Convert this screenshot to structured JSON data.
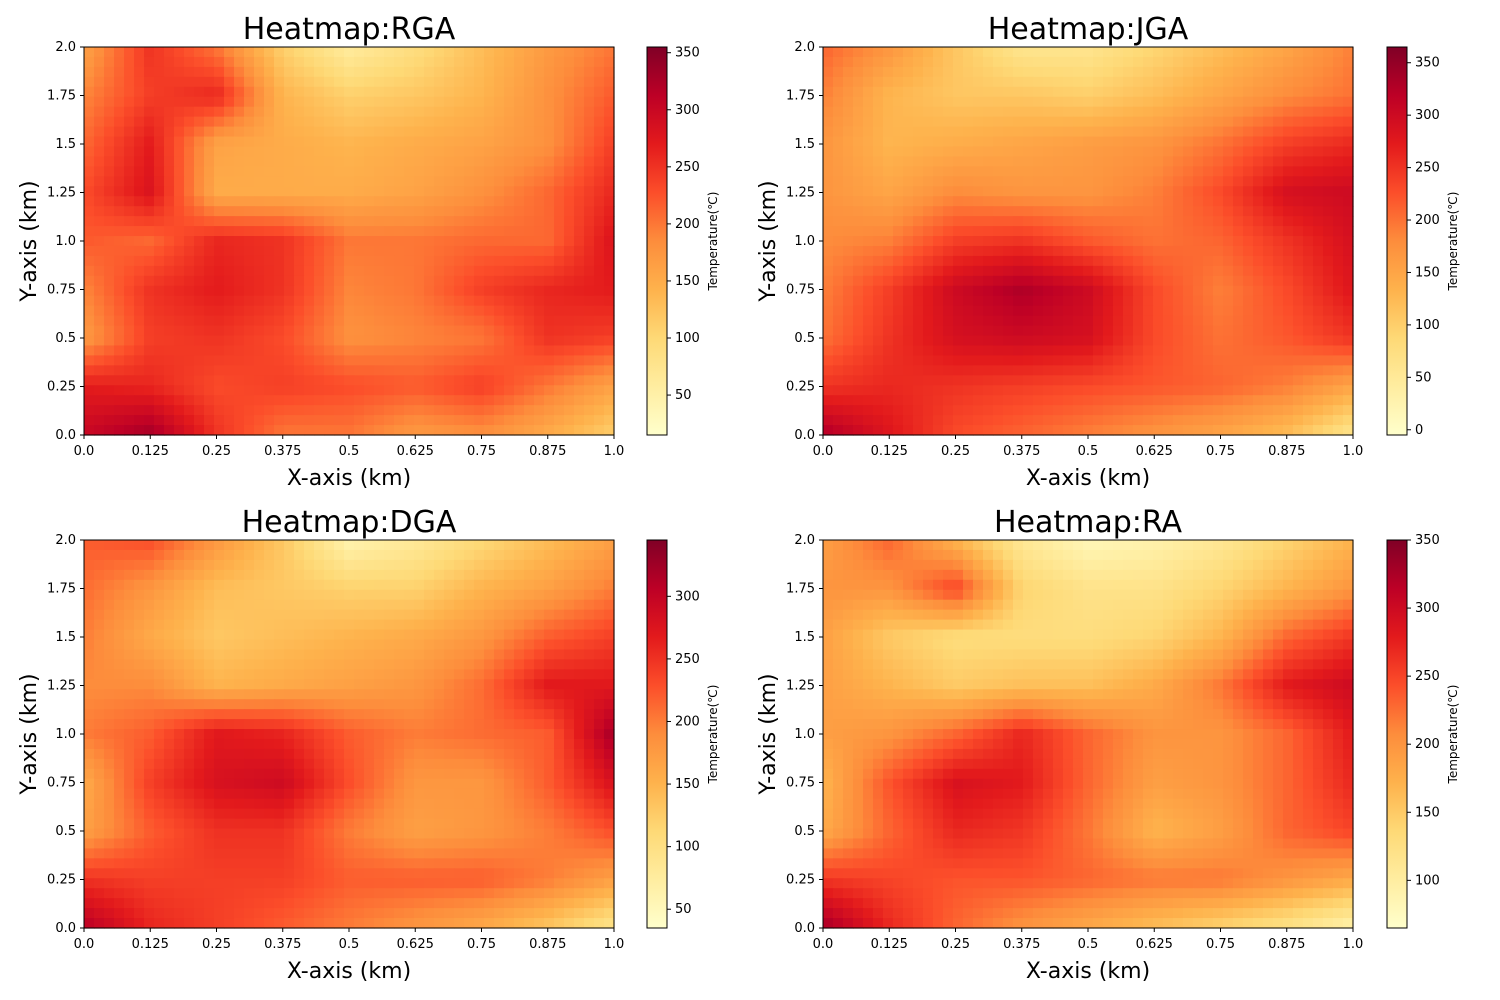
{
  "chart_data": [
    {
      "type": "heatmap",
      "title": "Heatmap:RGA",
      "xlabel": "X-axis (km)",
      "ylabel": "Y-axis (km)",
      "xlim": [
        0,
        1
      ],
      "ylim": [
        0,
        2
      ],
      "xticks": [
        "0.0",
        "0.125",
        "0.25",
        "0.375",
        "0.5",
        "0.625",
        "0.75",
        "0.875",
        "1.0"
      ],
      "yticks": [
        "0.0",
        "0.25",
        "0.5",
        "0.75",
        "1.0",
        "1.25",
        "1.5",
        "1.75",
        "2.0"
      ],
      "colorbar": {
        "label": "Temperature(℃)",
        "range": [
          15,
          355
        ],
        "ticks": [
          50,
          100,
          150,
          200,
          250,
          300,
          350
        ]
      },
      "colormap": [
        "#ffffcc",
        "#ffeda0",
        "#fed976",
        "#feb24c",
        "#fd8d3c",
        "#fc4e2a",
        "#e31a1c",
        "#bd0026",
        "#800026"
      ],
      "x": [
        0.0,
        0.125,
        0.25,
        0.375,
        0.5,
        0.625,
        0.75,
        0.875,
        1.0
      ],
      "y": [
        0.0,
        0.25,
        0.5,
        0.75,
        1.0,
        1.25,
        1.5,
        1.75,
        2.0
      ],
      "z": [
        [
          300,
          330,
          250,
          200,
          200,
          170,
          180,
          150,
          110
        ],
        [
          270,
          260,
          230,
          240,
          230,
          220,
          240,
          200,
          160
        ],
        [
          170,
          240,
          250,
          230,
          180,
          190,
          200,
          250,
          240
        ],
        [
          190,
          250,
          270,
          250,
          190,
          200,
          240,
          260,
          270
        ],
        [
          220,
          210,
          260,
          250,
          200,
          200,
          210,
          210,
          280
        ],
        [
          230,
          280,
          150,
          150,
          150,
          160,
          180,
          210,
          260
        ],
        [
          210,
          270,
          160,
          150,
          140,
          150,
          160,
          180,
          240
        ],
        [
          190,
          240,
          260,
          140,
          110,
          120,
          140,
          180,
          220
        ],
        [
          160,
          250,
          200,
          110,
          60,
          90,
          130,
          170,
          200
        ]
      ]
    },
    {
      "type": "heatmap",
      "title": "Heatmap:JGA",
      "xlabel": "X-axis (km)",
      "ylabel": "Y-axis (km)",
      "xlim": [
        0,
        1
      ],
      "ylim": [
        0,
        2
      ],
      "xticks": [
        "0.0",
        "0.125",
        "0.25",
        "0.375",
        "0.5",
        "0.625",
        "0.75",
        "0.875",
        "1.0"
      ],
      "yticks": [
        "0.0",
        "0.25",
        "0.5",
        "0.75",
        "1.0",
        "1.25",
        "1.5",
        "1.75",
        "2.0"
      ],
      "colorbar": {
        "label": "Temperature(℃)",
        "range": [
          -5,
          365
        ],
        "ticks": [
          0,
          50,
          100,
          150,
          200,
          250,
          300,
          350
        ]
      },
      "colormap": [
        "#ffffcc",
        "#ffeda0",
        "#fed976",
        "#feb24c",
        "#fd8d3c",
        "#fc4e2a",
        "#e31a1c",
        "#bd0026",
        "#800026"
      ],
      "x": [
        0.0,
        0.125,
        0.25,
        0.375,
        0.5,
        0.625,
        0.75,
        0.875,
        1.0
      ],
      "y": [
        0.0,
        0.25,
        0.5,
        0.75,
        1.0,
        1.25,
        1.5,
        1.75,
        2.0
      ],
      "z": [
        [
          330,
          280,
          230,
          210,
          190,
          170,
          150,
          120,
          60
        ],
        [
          250,
          260,
          250,
          240,
          230,
          220,
          210,
          190,
          150
        ],
        [
          200,
          250,
          290,
          300,
          290,
          230,
          200,
          220,
          250
        ],
        [
          190,
          240,
          300,
          330,
          300,
          230,
          190,
          230,
          280
        ],
        [
          180,
          190,
          240,
          250,
          220,
          200,
          210,
          250,
          290
        ],
        [
          170,
          150,
          180,
          170,
          170,
          190,
          230,
          290,
          300
        ],
        [
          170,
          130,
          140,
          150,
          160,
          170,
          200,
          240,
          260
        ],
        [
          190,
          130,
          110,
          110,
          100,
          120,
          150,
          180,
          200
        ],
        [
          210,
          170,
          110,
          60,
          60,
          90,
          120,
          150,
          190
        ]
      ]
    },
    {
      "type": "heatmap",
      "title": "Heatmap:DGA",
      "xlabel": "X-axis (km)",
      "ylabel": "Y-axis (km)",
      "xlim": [
        0,
        1
      ],
      "ylim": [
        0,
        2
      ],
      "xticks": [
        "0.0",
        "0.125",
        "0.25",
        "0.375",
        "0.5",
        "0.625",
        "0.75",
        "0.875",
        "1.0"
      ],
      "yticks": [
        "0.0",
        "0.25",
        "0.5",
        "0.75",
        "1.0",
        "1.25",
        "1.5",
        "1.75",
        "2.0"
      ],
      "colorbar": {
        "label": "Temperature(℃)",
        "range": [
          35,
          345
        ],
        "ticks": [
          50,
          100,
          150,
          200,
          250,
          300
        ]
      },
      "colormap": [
        "#ffffcc",
        "#ffeda0",
        "#fed976",
        "#feb24c",
        "#fd8d3c",
        "#fc4e2a",
        "#e31a1c",
        "#bd0026",
        "#800026"
      ],
      "x": [
        0.0,
        0.125,
        0.25,
        0.375,
        0.5,
        0.625,
        0.75,
        0.875,
        1.0
      ],
      "y": [
        0.0,
        0.25,
        0.5,
        0.75,
        1.0,
        1.25,
        1.5,
        1.75,
        2.0
      ],
      "z": [
        [
          310,
          260,
          240,
          220,
          200,
          180,
          160,
          130,
          90
        ],
        [
          250,
          240,
          240,
          240,
          220,
          220,
          220,
          200,
          170
        ],
        [
          170,
          220,
          250,
          250,
          200,
          170,
          180,
          200,
          230
        ],
        [
          160,
          240,
          280,
          290,
          230,
          180,
          180,
          220,
          280
        ],
        [
          200,
          220,
          270,
          260,
          220,
          200,
          210,
          220,
          320
        ],
        [
          190,
          190,
          150,
          160,
          170,
          180,
          210,
          270,
          270
        ],
        [
          200,
          160,
          130,
          140,
          150,
          160,
          180,
          220,
          240
        ],
        [
          210,
          180,
          140,
          130,
          120,
          120,
          150,
          170,
          200
        ],
        [
          220,
          230,
          180,
          130,
          60,
          80,
          110,
          140,
          170
        ]
      ]
    },
    {
      "type": "heatmap",
      "title": "Heatmap:RA",
      "xlabel": "X-axis (km)",
      "ylabel": "Y-axis (km)",
      "xlim": [
        0,
        1
      ],
      "ylim": [
        0,
        2
      ],
      "xticks": [
        "0.0",
        "0.125",
        "0.25",
        "0.375",
        "0.5",
        "0.625",
        "0.75",
        "0.875",
        "1.0"
      ],
      "yticks": [
        "0.0",
        "0.25",
        "0.5",
        "0.75",
        "1.0",
        "1.25",
        "1.5",
        "1.75",
        "2.0"
      ],
      "colorbar": {
        "label": "Temperature(℃)",
        "range": [
          65,
          350
        ],
        "ticks": [
          100,
          150,
          200,
          250,
          300,
          350
        ]
      },
      "colormap": [
        "#ffffcc",
        "#ffeda0",
        "#fed976",
        "#feb24c",
        "#fd8d3c",
        "#fc4e2a",
        "#e31a1c",
        "#bd0026",
        "#800026"
      ],
      "x": [
        0.0,
        0.125,
        0.25,
        0.375,
        0.5,
        0.625,
        0.75,
        0.875,
        1.0
      ],
      "y": [
        0.0,
        0.25,
        0.5,
        0.75,
        1.0,
        1.25,
        1.5,
        1.75,
        2.0
      ],
      "z": [
        [
          330,
          270,
          230,
          200,
          180,
          160,
          140,
          120,
          90
        ],
        [
          260,
          250,
          240,
          240,
          230,
          220,
          220,
          200,
          180
        ],
        [
          180,
          230,
          270,
          260,
          220,
          170,
          190,
          230,
          250
        ],
        [
          170,
          240,
          290,
          280,
          230,
          190,
          200,
          230,
          270
        ],
        [
          190,
          200,
          230,
          270,
          230,
          200,
          200,
          230,
          280
        ],
        [
          190,
          170,
          150,
          160,
          160,
          180,
          220,
          280,
          300
        ],
        [
          190,
          150,
          130,
          130,
          130,
          140,
          170,
          230,
          260
        ],
        [
          200,
          200,
          250,
          140,
          120,
          120,
          140,
          170,
          200
        ],
        [
          190,
          230,
          170,
          110,
          80,
          90,
          110,
          140,
          170
        ]
      ]
    }
  ]
}
